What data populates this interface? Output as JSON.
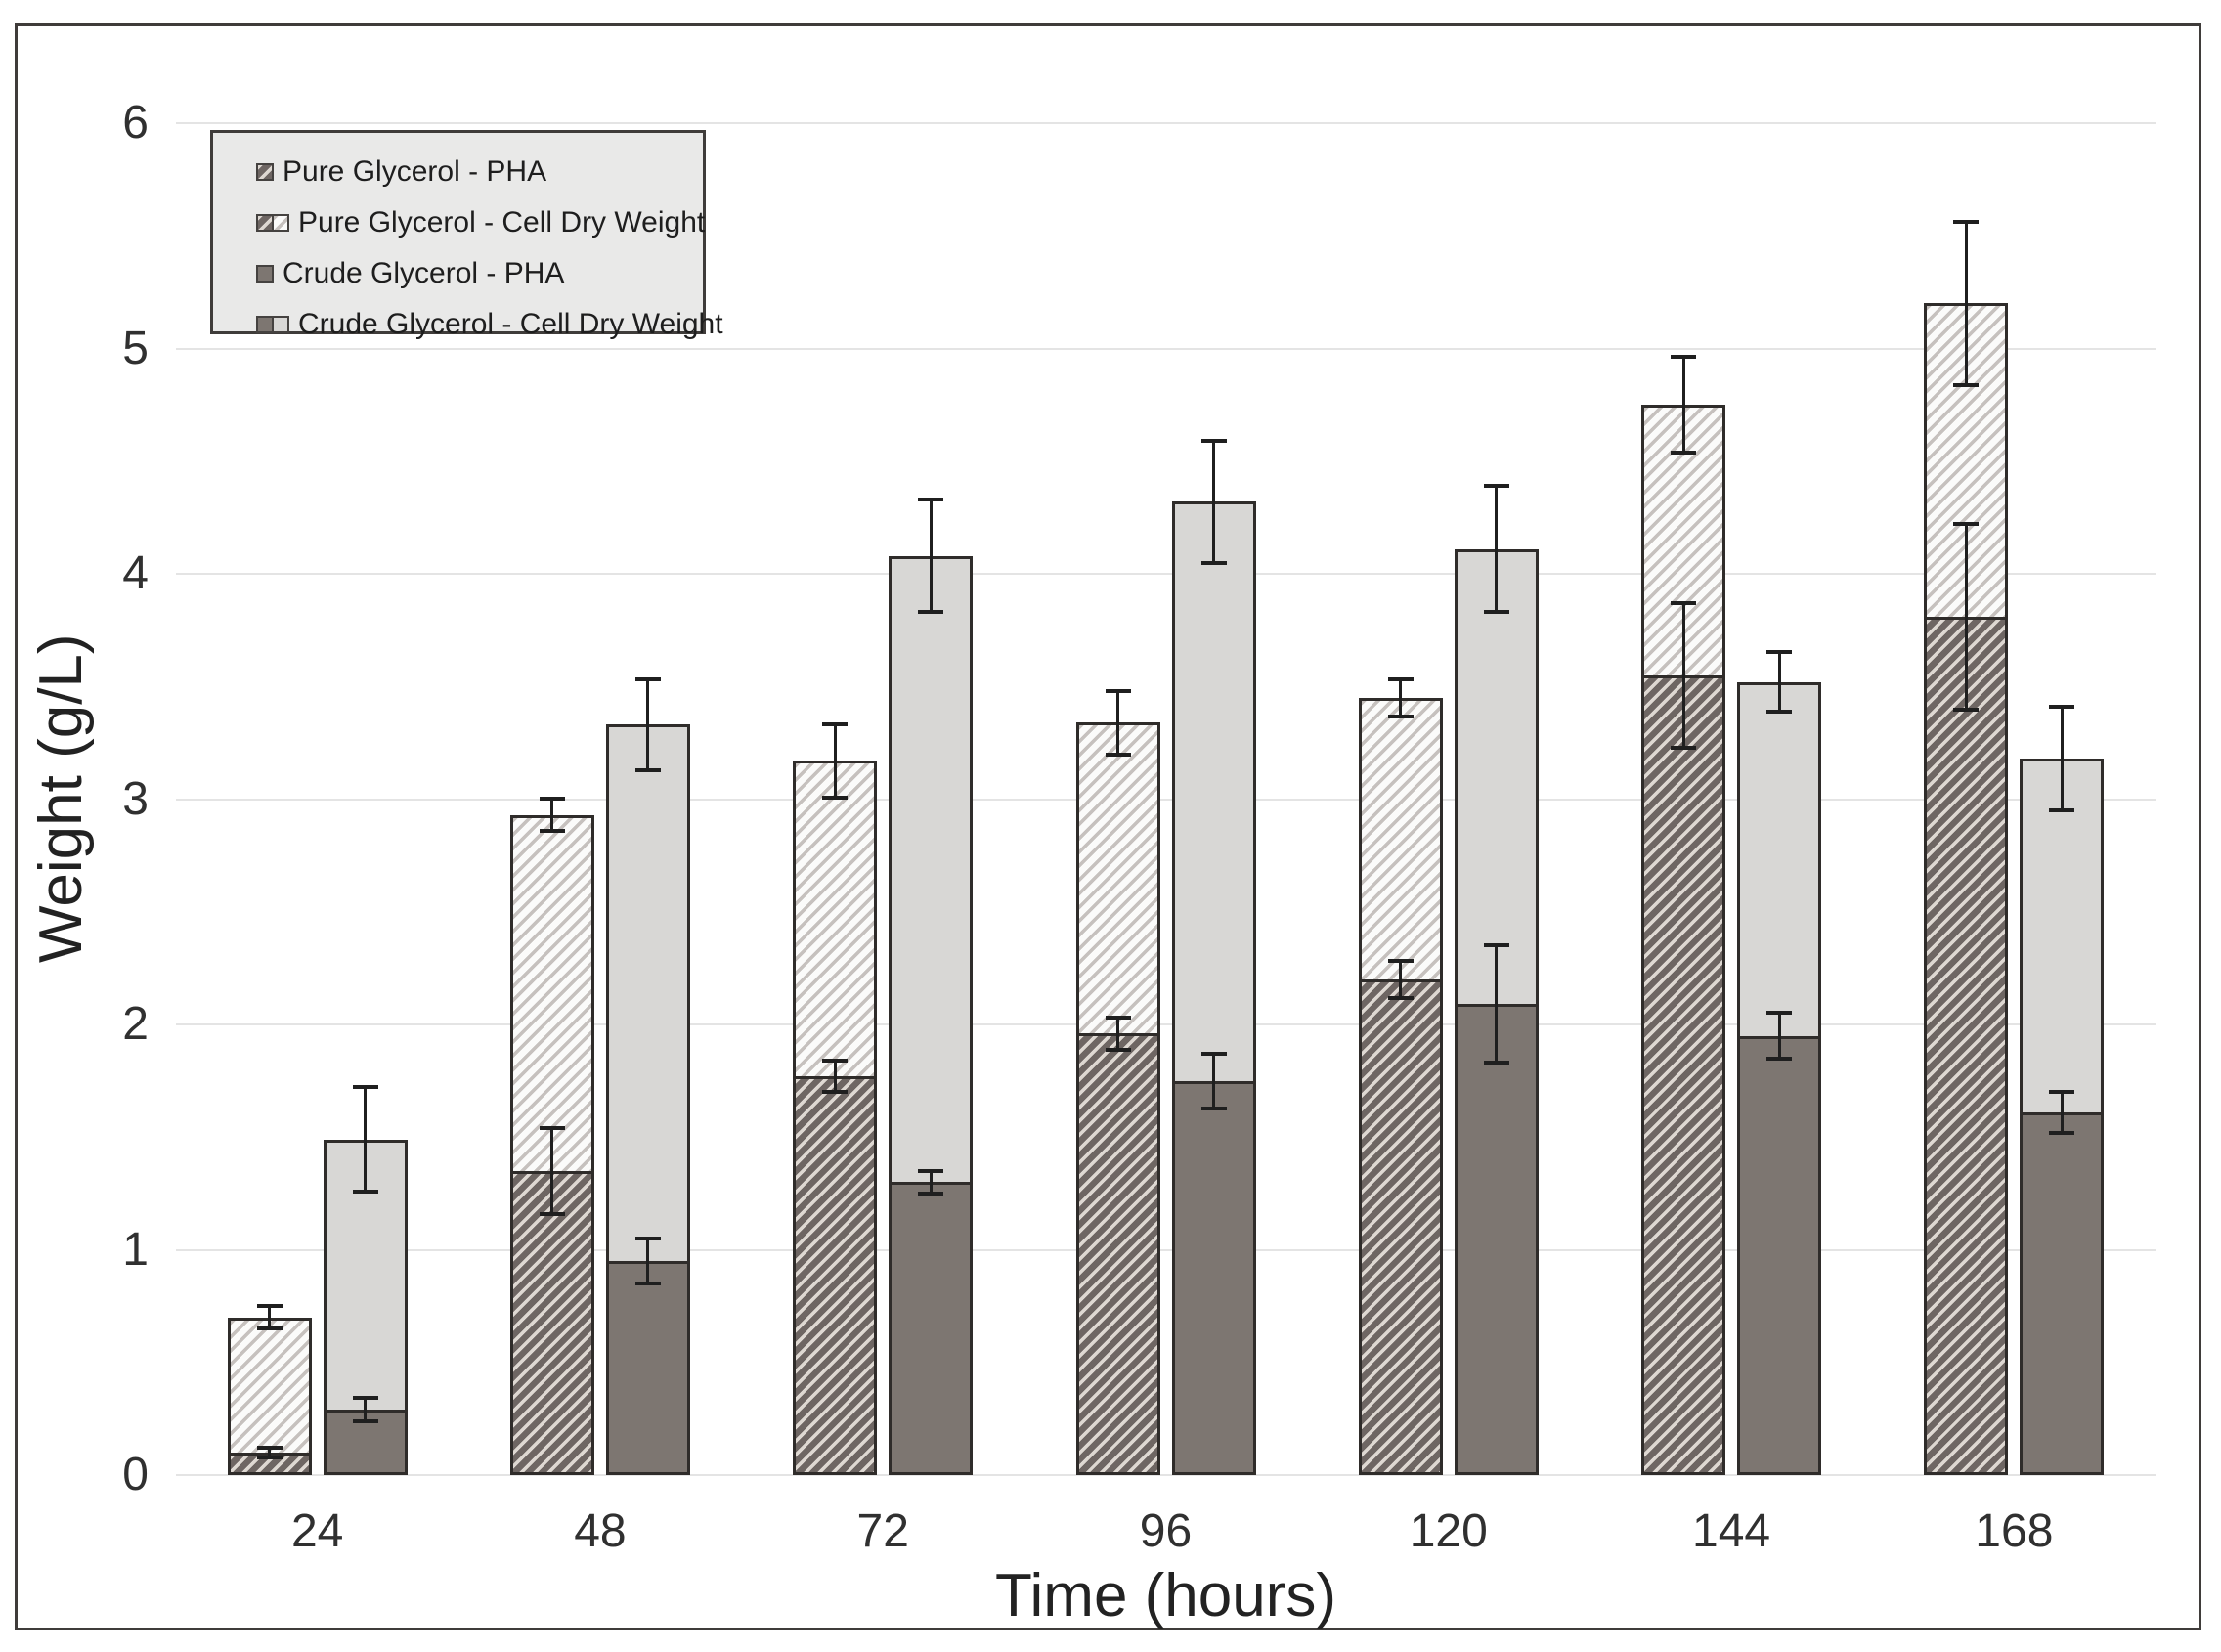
{
  "figure": {
    "x_axis_title": "Time (hours)",
    "y_axis_title": "Weight (g/L)",
    "legend": [
      {
        "label": "Pure Glycerol - PHA",
        "swatches": [
          "hatch_dark"
        ]
      },
      {
        "label": "Pure Glycerol - Cell Dry Weight",
        "swatches": [
          "hatch_dark",
          "hatch_light"
        ]
      },
      {
        "label": "Crude Glycerol - PHA",
        "swatches": [
          "solid_dark"
        ]
      },
      {
        "label": "Crude Glycerol - Cell Dry Weight",
        "swatches": [
          "solid_dark",
          "solid_light"
        ]
      }
    ],
    "colors": {
      "solid_dark": "#7d7671",
      "solid_light": "#d8d7d5",
      "hatch_dark_bg": "#6e6663",
      "hatch_dark_stripe": "#ded8d2",
      "hatch_light_bg": "#fbfbfa",
      "hatch_light_stripe": "#c6c1be",
      "bar_border": "#2f2c2a",
      "gridline": "#e4e4e4",
      "error_bar": "#1f1f1f",
      "legend_bg": "#e9e9e8",
      "frame_border": "#3f3c3a",
      "text": "#303030"
    }
  },
  "chart_data": {
    "type": "bar",
    "stacked": true,
    "title": "",
    "xlabel": "Time (hours)",
    "ylabel": "Weight (g/L)",
    "ylim": [
      0,
      6
    ],
    "y_ticks": [
      0,
      1,
      2,
      3,
      4,
      5,
      6
    ],
    "grid": "horizontal",
    "legend_position": "top-left-inside",
    "categories": [
      "24",
      "48",
      "72",
      "96",
      "120",
      "144",
      "168"
    ],
    "groups": [
      {
        "name": "Pure Glycerol",
        "pattern_bottom": "hatch_dark",
        "pattern_top": "hatch_light",
        "pha": [
          0.1,
          1.35,
          1.77,
          1.96,
          2.2,
          3.55,
          3.81
        ],
        "pha_err": [
          0.03,
          0.2,
          0.08,
          0.08,
          0.09,
          0.33,
          0.42
        ],
        "cell_dry_weight_total": [
          0.7,
          2.93,
          3.17,
          3.34,
          3.45,
          4.75,
          5.2
        ],
        "cell_dry_weight_err": [
          0.06,
          0.08,
          0.17,
          0.15,
          0.09,
          0.22,
          0.37
        ]
      },
      {
        "name": "Crude Glycerol",
        "pattern_bottom": "solid_dark",
        "pattern_top": "solid_light",
        "pha": [
          0.29,
          0.95,
          1.3,
          1.75,
          2.09,
          1.95,
          1.61
        ],
        "pha_err": [
          0.06,
          0.11,
          0.06,
          0.13,
          0.27,
          0.11,
          0.1
        ],
        "cell_dry_weight_total": [
          1.49,
          3.33,
          4.08,
          4.32,
          4.11,
          3.52,
          3.18
        ],
        "cell_dry_weight_err": [
          0.24,
          0.21,
          0.26,
          0.28,
          0.29,
          0.14,
          0.24
        ]
      }
    ],
    "series": [
      {
        "name": "Pure Glycerol - PHA",
        "values": [
          0.1,
          1.35,
          1.77,
          1.96,
          2.2,
          3.55,
          3.81
        ]
      },
      {
        "name": "Pure Glycerol - Cell Dry Weight",
        "values": [
          0.7,
          2.93,
          3.17,
          3.34,
          3.45,
          4.75,
          5.2
        ]
      },
      {
        "name": "Crude Glycerol - PHA",
        "values": [
          0.29,
          0.95,
          1.3,
          1.75,
          2.09,
          1.95,
          1.61
        ]
      },
      {
        "name": "Crude Glycerol - Cell Dry Weight",
        "values": [
          1.49,
          3.33,
          4.08,
          4.32,
          4.11,
          3.52,
          3.18
        ]
      }
    ]
  }
}
